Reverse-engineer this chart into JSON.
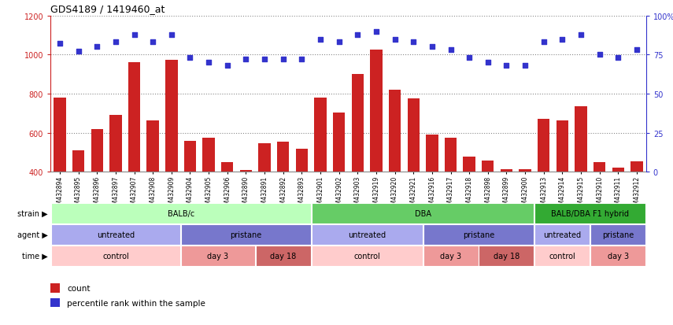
{
  "title": "GDS4189 / 1419460_at",
  "samples": [
    "GSM432894",
    "GSM432895",
    "GSM432896",
    "GSM432897",
    "GSM432907",
    "GSM432908",
    "GSM432909",
    "GSM432904",
    "GSM432905",
    "GSM432906",
    "GSM432890",
    "GSM432891",
    "GSM432892",
    "GSM432893",
    "GSM432901",
    "GSM432902",
    "GSM432903",
    "GSM432919",
    "GSM432920",
    "GSM432921",
    "GSM432916",
    "GSM432917",
    "GSM432918",
    "GSM432898",
    "GSM432899",
    "GSM432900",
    "GSM432913",
    "GSM432914",
    "GSM432915",
    "GSM432910",
    "GSM432911",
    "GSM432912"
  ],
  "counts": [
    780,
    510,
    620,
    690,
    960,
    665,
    975,
    560,
    575,
    450,
    410,
    545,
    555,
    520,
    780,
    705,
    900,
    1025,
    820,
    775,
    590,
    575,
    480,
    460,
    415,
    415,
    670,
    665,
    735,
    450,
    420,
    455
  ],
  "percentiles": [
    82,
    77,
    80,
    83,
    88,
    83,
    88,
    73,
    70,
    68,
    72,
    72,
    72,
    72,
    85,
    83,
    88,
    90,
    85,
    83,
    80,
    78,
    73,
    70,
    68,
    68,
    83,
    85,
    88,
    75,
    73,
    78
  ],
  "ylim_left": [
    400,
    1200
  ],
  "ylim_right": [
    0,
    100
  ],
  "yticks_left": [
    400,
    600,
    800,
    1000,
    1200
  ],
  "yticks_right": [
    0,
    25,
    50,
    75,
    100
  ],
  "bar_color": "#cc2222",
  "dot_color": "#3333cc",
  "strain_groups": [
    {
      "label": "BALB/c",
      "start": 0,
      "end": 14,
      "color": "#bbffbb"
    },
    {
      "label": "DBA",
      "start": 14,
      "end": 26,
      "color": "#66cc66"
    },
    {
      "label": "BALB/DBA F1 hybrid",
      "start": 26,
      "end": 32,
      "color": "#33aa33"
    }
  ],
  "agent_groups": [
    {
      "label": "untreated",
      "start": 0,
      "end": 7,
      "color": "#aaaaee"
    },
    {
      "label": "pristane",
      "start": 7,
      "end": 14,
      "color": "#7777cc"
    },
    {
      "label": "untreated",
      "start": 14,
      "end": 20,
      "color": "#aaaaee"
    },
    {
      "label": "pristane",
      "start": 20,
      "end": 26,
      "color": "#7777cc"
    },
    {
      "label": "untreated",
      "start": 26,
      "end": 29,
      "color": "#aaaaee"
    },
    {
      "label": "pristane",
      "start": 29,
      "end": 32,
      "color": "#7777cc"
    }
  ],
  "time_groups": [
    {
      "label": "control",
      "start": 0,
      "end": 7,
      "color": "#ffcccc"
    },
    {
      "label": "day 3",
      "start": 7,
      "end": 11,
      "color": "#ee9999"
    },
    {
      "label": "day 18",
      "start": 11,
      "end": 14,
      "color": "#cc6666"
    },
    {
      "label": "control",
      "start": 14,
      "end": 20,
      "color": "#ffcccc"
    },
    {
      "label": "day 3",
      "start": 20,
      "end": 23,
      "color": "#ee9999"
    },
    {
      "label": "day 18",
      "start": 23,
      "end": 26,
      "color": "#cc6666"
    },
    {
      "label": "control",
      "start": 26,
      "end": 29,
      "color": "#ffcccc"
    },
    {
      "label": "day 3",
      "start": 29,
      "end": 32,
      "color": "#ee9999"
    }
  ],
  "row_labels": [
    "strain",
    "agent",
    "time"
  ],
  "bg_color": "#f0f0f0"
}
